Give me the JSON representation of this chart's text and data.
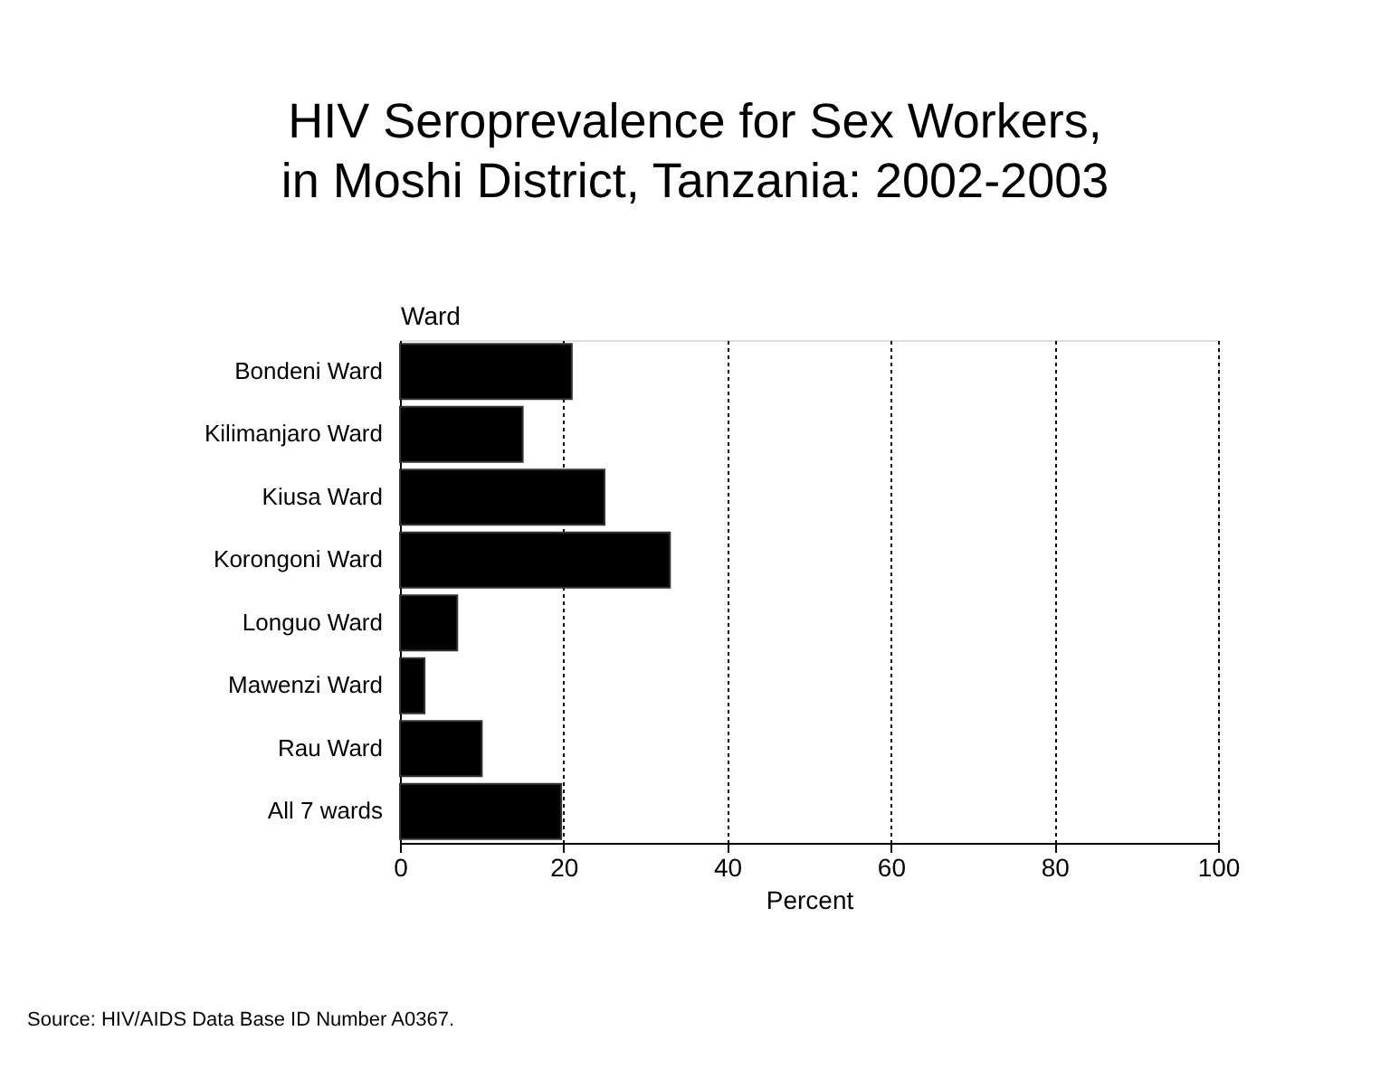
{
  "chart_data": {
    "type": "bar",
    "orientation": "horizontal",
    "title": [
      "HIV Seroprevalence for Sex Workers,",
      "in Moshi District, Tanzania:  2002-2003"
    ],
    "ylabel": "Ward",
    "xlabel": "Percent",
    "categories": [
      "Bondeni Ward",
      "Kilimanjaro Ward",
      "Kiusa Ward",
      "Korongoni Ward",
      "Longuo Ward",
      "Mawenzi Ward",
      "Rau Ward",
      "All 7 wards"
    ],
    "values": [
      21,
      15,
      25,
      33,
      7,
      3,
      10,
      19.7
    ],
    "color": "#000000",
    "xlim": [
      0,
      100
    ],
    "xticks": [
      0,
      20,
      40,
      60,
      80,
      100
    ],
    "grid": "x",
    "annotations": [
      "Source:  HIV/AIDS Data Base ID Number A0367."
    ]
  }
}
